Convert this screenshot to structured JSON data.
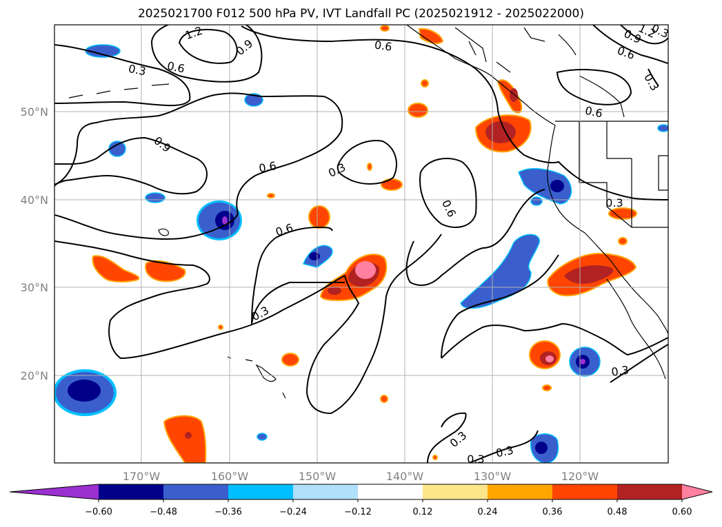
{
  "title": "2025021700 F012 500 hPa PV, IVT Landfall PC (2025021912 - 2025022000)",
  "axes": {
    "lat_labels": [
      "50°N",
      "40°N",
      "30°N",
      "20°N"
    ],
    "lon_labels": [
      "170°W",
      "160°W",
      "150°W",
      "140°W",
      "130°W",
      "120°W"
    ]
  },
  "contour_labels": [
    "1.2",
    "0.9",
    "0.3",
    "0.6",
    "0.9",
    "0.6",
    "0.3",
    "0.6",
    "0.3",
    "0.6",
    "0.6",
    "0.3",
    "0.3",
    "0.3",
    "0.3",
    "0.3",
    "0.3",
    "1.2",
    "0.9",
    "0.6",
    "0.3",
    "0.6"
  ],
  "colorbar": {
    "ticks": [
      "−0.60",
      "−0.48",
      "−0.36",
      "−0.24",
      "−0.12",
      "0.12",
      "0.24",
      "0.36",
      "0.48",
      "0.60"
    ],
    "colors": [
      "#9b30d0",
      "#00008b",
      "#3a5fcd",
      "#00bfff",
      "#b0e0fa",
      "#ffffff",
      "#fde68a",
      "#ffa500",
      "#ff4500",
      "#b22222",
      "#ff80a0"
    ]
  },
  "chart_data": {
    "type": "heatmap",
    "title": "2025021700 F012 500 hPa PV, IVT Landfall PC (2025021912 - 2025022000)",
    "xlabel": "",
    "ylabel": "",
    "xlim": [
      -180,
      -110
    ],
    "ylim": [
      10,
      60
    ],
    "contour_field": "500 hPa PV",
    "contour_levels": [
      0.3,
      0.6,
      0.9,
      1.2
    ],
    "shaded_field": "IVT Landfall PC",
    "shaded_levels": [
      -0.6,
      -0.48,
      -0.36,
      -0.24,
      -0.12,
      0.12,
      0.24,
      0.36,
      0.48,
      0.6
    ],
    "grid": true
  }
}
